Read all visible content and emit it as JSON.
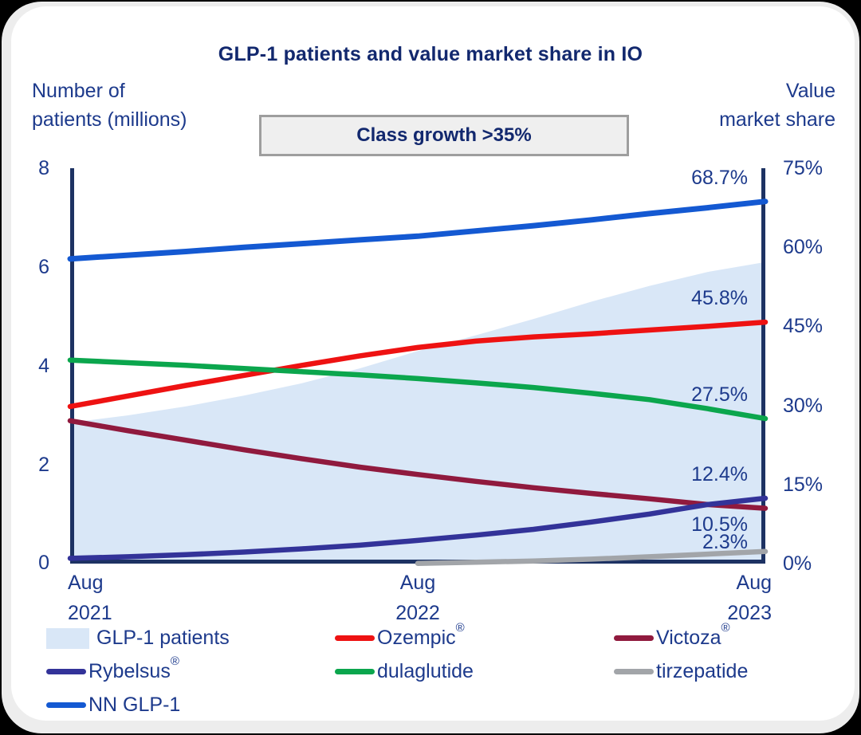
{
  "header": {
    "title": "GLP-1 patients and value market share in IO",
    "left_axis_title": "Number of\npatients (millions)",
    "right_axis_title": "Value\nmarket share",
    "annotation": "Class growth >35%"
  },
  "axes": {
    "left_ticks": [
      "8",
      "6",
      "4",
      "2",
      "0"
    ],
    "right_ticks": [
      "75%",
      "60%",
      "45%",
      "30%",
      "15%",
      "0%"
    ],
    "x_ticks": [
      {
        "line1": "Aug",
        "line2": "2021"
      },
      {
        "line1": "Aug",
        "line2": "2022"
      },
      {
        "line1": "Aug",
        "line2": "2023"
      }
    ]
  },
  "chart_data": {
    "type": "area",
    "title": "GLP-1 patients and value market share in IO",
    "x_months": [
      0,
      2,
      4,
      6,
      8,
      10,
      12,
      14,
      16,
      18,
      20,
      22,
      24
    ],
    "x_labels": [
      "Aug 2021",
      "Aug 2022",
      "Aug 2023"
    ],
    "left_axis": {
      "label": "Number of patients (millions)",
      "range": [
        0,
        8
      ]
    },
    "right_axis": {
      "label": "Value market share",
      "range": [
        0,
        75
      ],
      "unit": "%"
    },
    "grid": false,
    "axis_color": "#1d3263",
    "annotation": "Class growth >35%",
    "area_series": {
      "name": "GLP-1 patients",
      "axis": "left",
      "color": "#d9e7f7",
      "values": [
        2.85,
        3.0,
        3.18,
        3.4,
        3.65,
        3.95,
        4.3,
        4.62,
        4.95,
        5.3,
        5.62,
        5.9,
        6.1
      ]
    },
    "line_series": [
      {
        "name": "Ozempic",
        "axis": "right",
        "color": "#ee1212",
        "stroke_width": 6.5,
        "end_label": "45.8%",
        "label_side": "above",
        "values": [
          29.8,
          31.8,
          33.8,
          35.7,
          37.6,
          39.4,
          41.0,
          42.2,
          43.0,
          43.6,
          44.3,
          45.0,
          45.8
        ]
      },
      {
        "name": "Victoza",
        "axis": "right",
        "color": "#901a3e",
        "stroke_width": 6.5,
        "end_label": "10.5%",
        "label_side": "below",
        "values": [
          27.1,
          25.2,
          23.4,
          21.6,
          19.9,
          18.3,
          16.9,
          15.6,
          14.4,
          13.3,
          12.3,
          11.2,
          10.5
        ]
      },
      {
        "name": "dulaglutide",
        "axis": "right",
        "color": "#0ba64d",
        "stroke_width": 6.5,
        "end_label": "27.5%",
        "label_side": "above",
        "values": [
          38.6,
          38.1,
          37.6,
          37.0,
          36.4,
          35.8,
          35.1,
          34.3,
          33.4,
          32.3,
          31.1,
          29.4,
          27.5
        ]
      },
      {
        "name": "Rybelsus",
        "axis": "right",
        "color": "#333399",
        "stroke_width": 6.5,
        "end_label": "12.4%",
        "label_side": "above",
        "values": [
          1.0,
          1.3,
          1.7,
          2.2,
          2.8,
          3.5,
          4.4,
          5.4,
          6.5,
          7.9,
          9.4,
          11.2,
          12.4
        ]
      },
      {
        "name": "tirzepatide",
        "axis": "right",
        "color": "#a2a5a9",
        "stroke_width": 6.5,
        "end_label": "2.3%",
        "label_side": "tight-above",
        "values": [
          null,
          null,
          null,
          null,
          null,
          null,
          0.05,
          0.25,
          0.5,
          0.85,
          1.3,
          1.8,
          2.3
        ]
      },
      {
        "name": "NN GLP-1",
        "axis": "right",
        "color": "#1459d2",
        "stroke_width": 7,
        "end_label": "68.7%",
        "label_side": "above",
        "values": [
          57.8,
          58.5,
          59.2,
          60.0,
          60.7,
          61.4,
          62.1,
          63.1,
          64.1,
          65.2,
          66.4,
          67.5,
          68.7
        ]
      }
    ]
  },
  "legend": {
    "items": [
      {
        "label": "GLP-1 patients",
        "sup": "",
        "swatch": "area",
        "color": "#d9e7f7"
      },
      {
        "label": "Ozempic",
        "sup": "®",
        "swatch": "line",
        "color": "#ee1212"
      },
      {
        "label": "Victoza",
        "sup": "®",
        "swatch": "line",
        "color": "#901a3e"
      },
      {
        "label": "Rybelsus",
        "sup": "®",
        "swatch": "line",
        "color": "#333399"
      },
      {
        "label": "dulaglutide",
        "sup": "",
        "swatch": "line",
        "color": "#0ba64d"
      },
      {
        "label": "tirzepatide",
        "sup": "",
        "swatch": "line",
        "color": "#a2a5a9"
      },
      {
        "label": "NN GLP-1",
        "sup": "",
        "swatch": "line",
        "color": "#1459d2"
      }
    ]
  }
}
